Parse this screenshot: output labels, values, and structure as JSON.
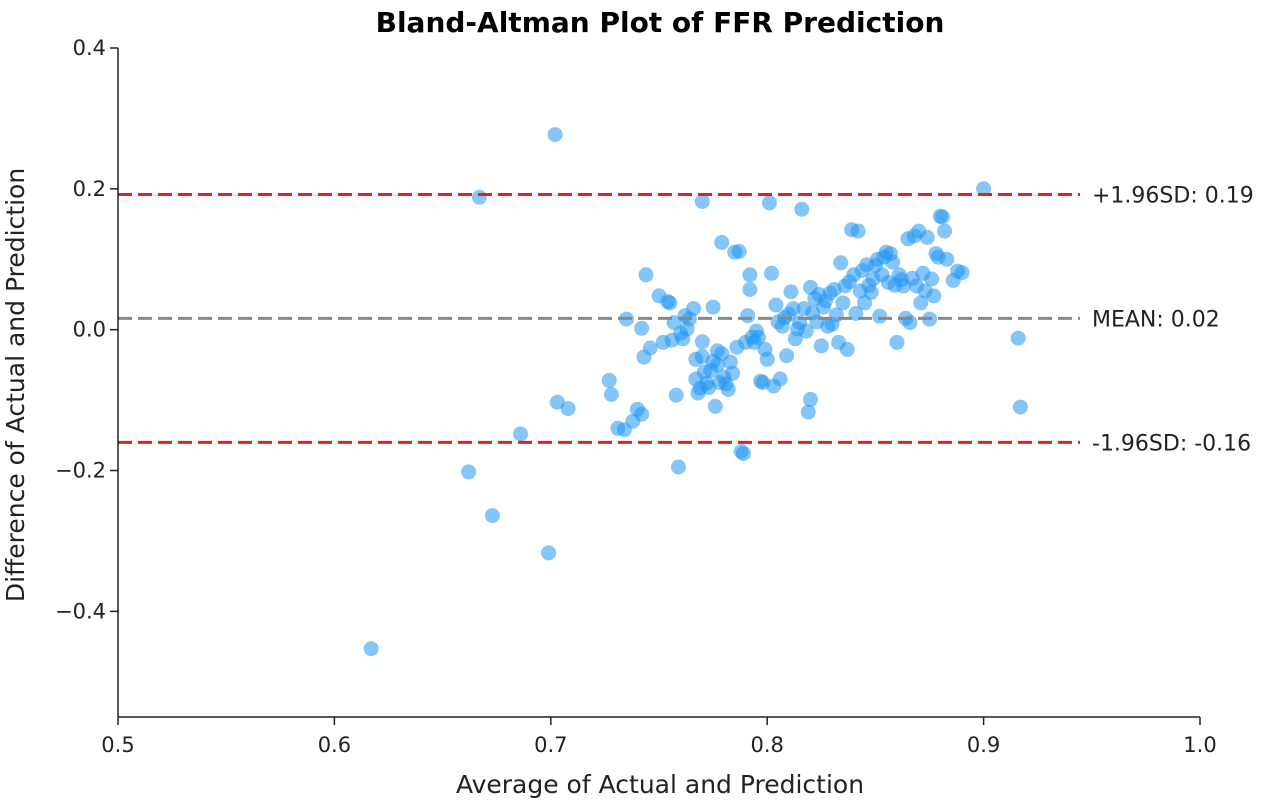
{
  "chart_data": {
    "type": "scatter",
    "title": "Bland-Altman Plot of FFR Prediction",
    "xlabel": "Average of Actual and Prediction",
    "ylabel": "Difference of Actual and Prediction",
    "xlim": [
      0.5,
      1.0
    ],
    "ylim": [
      -0.55,
      0.4
    ],
    "xticks": [
      {
        "value": 0.5,
        "label": "0.5"
      },
      {
        "value": 0.6,
        "label": "0.6"
      },
      {
        "value": 0.7,
        "label": "0.7"
      },
      {
        "value": 0.8,
        "label": "0.8"
      },
      {
        "value": 0.9,
        "label": "0.9"
      },
      {
        "value": 1.0,
        "label": "1.0"
      }
    ],
    "yticks": [
      {
        "value": 0.4,
        "label": "0.4"
      },
      {
        "value": 0.2,
        "label": "0.2"
      },
      {
        "value": 0.0,
        "label": "0.0"
      },
      {
        "value": -0.2,
        "label": "−0.2"
      },
      {
        "value": -0.4,
        "label": "−0.4"
      }
    ],
    "grid": false,
    "point_color": "#2196f3",
    "reference_lines": [
      {
        "name": "upper",
        "y": 0.192,
        "label": "+1.96SD: 0.19",
        "color": "#dd2222",
        "dash": "dashed"
      },
      {
        "name": "mean",
        "y": 0.016,
        "label": "MEAN: 0.02",
        "color": "#888888",
        "dash": "dashed"
      },
      {
        "name": "lower",
        "y": -0.16,
        "label": "-1.96SD: -0.16",
        "color": "#dd2222",
        "dash": "dashed"
      }
    ],
    "points": [
      [
        0.617,
        -0.453
      ],
      [
        0.662,
        -0.202
      ],
      [
        0.667,
        0.188
      ],
      [
        0.673,
        -0.264
      ],
      [
        0.686,
        -0.148
      ],
      [
        0.699,
        -0.317
      ],
      [
        0.702,
        0.277
      ],
      [
        0.703,
        -0.103
      ],
      [
        0.708,
        -0.112
      ],
      [
        0.727,
        -0.072
      ],
      [
        0.728,
        -0.092
      ],
      [
        0.731,
        -0.14
      ],
      [
        0.734,
        -0.142
      ],
      [
        0.735,
        0.015
      ],
      [
        0.738,
        -0.13
      ],
      [
        0.74,
        -0.113
      ],
      [
        0.742,
        -0.12
      ],
      [
        0.742,
        0.002
      ],
      [
        0.743,
        -0.039
      ],
      [
        0.744,
        0.078
      ],
      [
        0.746,
        -0.026
      ],
      [
        0.75,
        0.048
      ],
      [
        0.752,
        -0.018
      ],
      [
        0.754,
        0.04
      ],
      [
        0.755,
        0.038
      ],
      [
        0.756,
        -0.015
      ],
      [
        0.757,
        0.01
      ],
      [
        0.758,
        -0.093
      ],
      [
        0.759,
        -0.195
      ],
      [
        0.76,
        -0.005
      ],
      [
        0.761,
        -0.013
      ],
      [
        0.762,
        0.02
      ],
      [
        0.763,
        0.001
      ],
      [
        0.764,
        0.015
      ],
      [
        0.766,
        0.03
      ],
      [
        0.767,
        -0.042
      ],
      [
        0.767,
        -0.07
      ],
      [
        0.768,
        -0.09
      ],
      [
        0.769,
        -0.083
      ],
      [
        0.77,
        0.182
      ],
      [
        0.77,
        -0.017
      ],
      [
        0.77,
        -0.038
      ],
      [
        0.771,
        -0.06
      ],
      [
        0.772,
        -0.076
      ],
      [
        0.773,
        -0.082
      ],
      [
        0.774,
        -0.058
      ],
      [
        0.775,
        0.032
      ],
      [
        0.775,
        -0.045
      ],
      [
        0.776,
        -0.109
      ],
      [
        0.777,
        -0.03
      ],
      [
        0.777,
        -0.05
      ],
      [
        0.778,
        -0.075
      ],
      [
        0.779,
        0.124
      ],
      [
        0.779,
        -0.034
      ],
      [
        0.78,
        -0.067
      ],
      [
        0.781,
        -0.077
      ],
      [
        0.782,
        -0.085
      ],
      [
        0.783,
        -0.046
      ],
      [
        0.784,
        -0.062
      ],
      [
        0.785,
        0.11
      ],
      [
        0.786,
        -0.025
      ],
      [
        0.787,
        0.111
      ],
      [
        0.788,
        -0.173
      ],
      [
        0.789,
        -0.176
      ],
      [
        0.79,
        -0.018
      ],
      [
        0.791,
        0.02
      ],
      [
        0.792,
        0.078
      ],
      [
        0.792,
        0.057
      ],
      [
        0.793,
        -0.011
      ],
      [
        0.794,
        -0.018
      ],
      [
        0.795,
        -0.002
      ],
      [
        0.796,
        -0.011
      ],
      [
        0.797,
        -0.073
      ],
      [
        0.798,
        -0.075
      ],
      [
        0.799,
        -0.028
      ],
      [
        0.8,
        -0.042
      ],
      [
        0.801,
        0.18
      ],
      [
        0.802,
        0.08
      ],
      [
        0.803,
        -0.08
      ],
      [
        0.804,
        0.035
      ],
      [
        0.805,
        0.011
      ],
      [
        0.806,
        -0.07
      ],
      [
        0.807,
        0.005
      ],
      [
        0.808,
        0.017
      ],
      [
        0.809,
        -0.037
      ],
      [
        0.81,
        0.022
      ],
      [
        0.811,
        0.054
      ],
      [
        0.812,
        0.03
      ],
      [
        0.813,
        -0.013
      ],
      [
        0.814,
        0.001
      ],
      [
        0.815,
        0.01
      ],
      [
        0.816,
        0.171
      ],
      [
        0.817,
        0.03
      ],
      [
        0.818,
        -0.002
      ],
      [
        0.819,
        -0.117
      ],
      [
        0.82,
        -0.099
      ],
      [
        0.82,
        0.06
      ],
      [
        0.821,
        0.024
      ],
      [
        0.822,
        0.044
      ],
      [
        0.823,
        0.011
      ],
      [
        0.824,
        0.05
      ],
      [
        0.825,
        -0.023
      ],
      [
        0.826,
        0.032
      ],
      [
        0.827,
        0.041
      ],
      [
        0.828,
        0.005
      ],
      [
        0.829,
        0.052
      ],
      [
        0.83,
        0.008
      ],
      [
        0.831,
        0.057
      ],
      [
        0.832,
        0.021
      ],
      [
        0.833,
        -0.018
      ],
      [
        0.834,
        0.095
      ],
      [
        0.835,
        0.038
      ],
      [
        0.836,
        0.062
      ],
      [
        0.837,
        -0.028
      ],
      [
        0.838,
        0.068
      ],
      [
        0.839,
        0.142
      ],
      [
        0.84,
        0.078
      ],
      [
        0.841,
        0.023
      ],
      [
        0.842,
        0.14
      ],
      [
        0.843,
        0.055
      ],
      [
        0.844,
        0.084
      ],
      [
        0.845,
        0.038
      ],
      [
        0.846,
        0.092
      ],
      [
        0.847,
        0.063
      ],
      [
        0.848,
        0.053
      ],
      [
        0.849,
        0.072
      ],
      [
        0.85,
        0.091
      ],
      [
        0.851,
        0.1
      ],
      [
        0.852,
        0.019
      ],
      [
        0.853,
        0.078
      ],
      [
        0.854,
        0.103
      ],
      [
        0.855,
        0.11
      ],
      [
        0.856,
        0.067
      ],
      [
        0.857,
        0.108
      ],
      [
        0.858,
        0.096
      ],
      [
        0.859,
        0.063
      ],
      [
        0.86,
        -0.018
      ],
      [
        0.861,
        0.078
      ],
      [
        0.862,
        0.071
      ],
      [
        0.863,
        0.062
      ],
      [
        0.864,
        0.016
      ],
      [
        0.865,
        0.129
      ],
      [
        0.866,
        0.01
      ],
      [
        0.867,
        0.073
      ],
      [
        0.868,
        0.133
      ],
      [
        0.869,
        0.062
      ],
      [
        0.87,
        0.14
      ],
      [
        0.871,
        0.038
      ],
      [
        0.872,
        0.08
      ],
      [
        0.873,
        0.055
      ],
      [
        0.874,
        0.131
      ],
      [
        0.875,
        0.015
      ],
      [
        0.876,
        0.072
      ],
      [
        0.877,
        0.048
      ],
      [
        0.878,
        0.108
      ],
      [
        0.879,
        0.103
      ],
      [
        0.88,
        0.161
      ],
      [
        0.881,
        0.16
      ],
      [
        0.882,
        0.14
      ],
      [
        0.883,
        0.1
      ],
      [
        0.886,
        0.07
      ],
      [
        0.888,
        0.083
      ],
      [
        0.89,
        0.081
      ],
      [
        0.9,
        0.2
      ],
      [
        0.916,
        -0.012
      ],
      [
        0.917,
        -0.11
      ]
    ]
  }
}
